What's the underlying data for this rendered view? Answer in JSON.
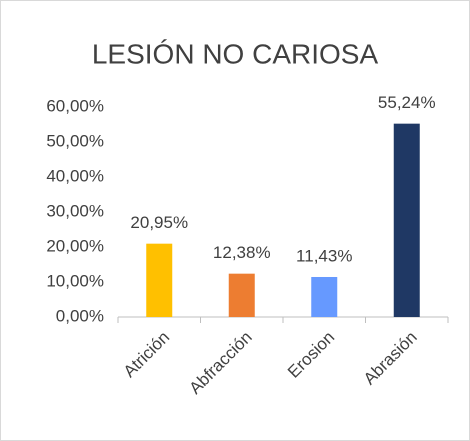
{
  "chart_data": {
    "type": "bar",
    "title": "LESIÓN NO CARIOSA",
    "categories": [
      "Atrición",
      "Abfracción",
      "Erosion",
      "Abrasión"
    ],
    "values": [
      20.95,
      12.38,
      11.43,
      55.24
    ],
    "value_labels": [
      "20,95%",
      "12,38%",
      "11,43%",
      "55,24%"
    ],
    "colors": [
      "#FFC000",
      "#ED7D31",
      "#6699FF",
      "#1F3864"
    ],
    "ylim": [
      0,
      60
    ],
    "yticks": [
      {
        "value": 0,
        "label": "0,00%"
      },
      {
        "value": 10,
        "label": "10,00%"
      },
      {
        "value": 20,
        "label": "20,00%"
      },
      {
        "value": 30,
        "label": "30,00%"
      },
      {
        "value": 40,
        "label": "40,00%"
      },
      {
        "value": 50,
        "label": "50,00%"
      },
      {
        "value": 60,
        "label": "60,00%"
      }
    ],
    "grid": false
  }
}
